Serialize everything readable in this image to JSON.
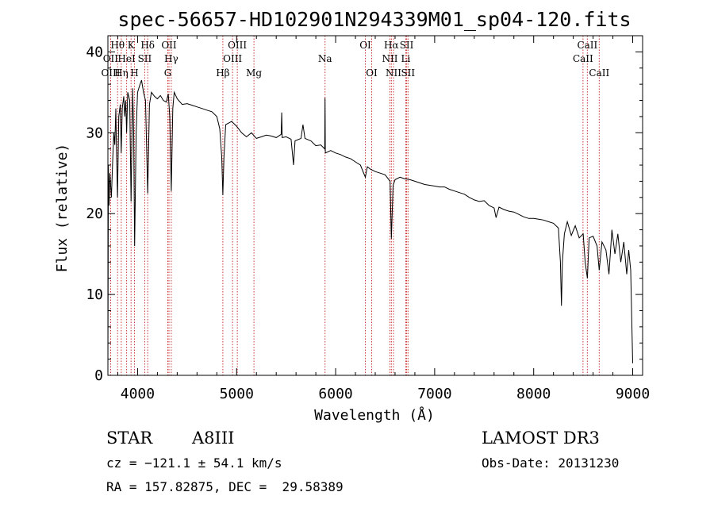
{
  "chart_data": {
    "type": "line",
    "title": "spec-56657-HD102901N294339M01_sp04-120.fits",
    "xlabel": "Wavelength (Å)",
    "ylabel": "Flux (relative)",
    "xlim": [
      3700,
      9100
    ],
    "ylim": [
      0,
      42
    ],
    "xticks": [
      4000,
      5000,
      6000,
      7000,
      8000,
      9000
    ],
    "yticks": [
      0,
      10,
      20,
      30,
      40
    ],
    "grid": false,
    "series": [
      {
        "name": "flux",
        "color": "#000000",
        "points": [
          [
            3700,
            0.5
          ],
          [
            3705,
            26
          ],
          [
            3712,
            21
          ],
          [
            3720,
            25
          ],
          [
            3735,
            22
          ],
          [
            3750,
            27
          ],
          [
            3760,
            30
          ],
          [
            3770,
            28.5
          ],
          [
            3780,
            33
          ],
          [
            3785,
            29
          ],
          [
            3797,
            22
          ],
          [
            3810,
            32
          ],
          [
            3825,
            33.5
          ],
          [
            3835,
            27.5
          ],
          [
            3845,
            33
          ],
          [
            3860,
            34.5
          ],
          [
            3870,
            32
          ],
          [
            3880,
            34
          ],
          [
            3889,
            30
          ],
          [
            3900,
            35
          ],
          [
            3920,
            34
          ],
          [
            3934,
            21.5
          ],
          [
            3950,
            35.5
          ],
          [
            3960,
            30
          ],
          [
            3970,
            16
          ],
          [
            3985,
            30
          ],
          [
            4000,
            35
          ],
          [
            4020,
            35.8
          ],
          [
            4040,
            36.5
          ],
          [
            4060,
            35
          ],
          [
            4080,
            34
          ],
          [
            4102,
            22.5
          ],
          [
            4120,
            33.5
          ],
          [
            4140,
            35
          ],
          [
            4170,
            34.5
          ],
          [
            4200,
            34.2
          ],
          [
            4230,
            34.6
          ],
          [
            4260,
            34
          ],
          [
            4290,
            33.8
          ],
          [
            4310,
            34.8
          ],
          [
            4325,
            32
          ],
          [
            4340,
            22.8
          ],
          [
            4355,
            33
          ],
          [
            4370,
            35
          ],
          [
            4400,
            34.2
          ],
          [
            4450,
            33.5
          ],
          [
            4500,
            33.6
          ],
          [
            4550,
            33.4
          ],
          [
            4600,
            33.2
          ],
          [
            4650,
            33
          ],
          [
            4700,
            32.8
          ],
          [
            4750,
            32.6
          ],
          [
            4800,
            32
          ],
          [
            4830,
            30.5
          ],
          [
            4850,
            27
          ],
          [
            4861,
            22.3
          ],
          [
            4872,
            27
          ],
          [
            4890,
            31
          ],
          [
            4920,
            31.2
          ],
          [
            4950,
            31.4
          ],
          [
            5000,
            30.8
          ],
          [
            5050,
            30
          ],
          [
            5100,
            29.5
          ],
          [
            5150,
            30
          ],
          [
            5200,
            29.3
          ],
          [
            5250,
            29.5
          ],
          [
            5300,
            29.7
          ],
          [
            5350,
            29.6
          ],
          [
            5400,
            29.4
          ],
          [
            5450,
            29.8
          ],
          [
            5455,
            32.5
          ],
          [
            5460,
            29.4
          ],
          [
            5500,
            29.5
          ],
          [
            5550,
            29.2
          ],
          [
            5575,
            26
          ],
          [
            5590,
            29
          ],
          [
            5650,
            29.3
          ],
          [
            5670,
            31
          ],
          [
            5690,
            29.3
          ],
          [
            5750,
            29
          ],
          [
            5800,
            28.4
          ],
          [
            5850,
            28.5
          ],
          [
            5890,
            28
          ],
          [
            5893,
            34.3
          ],
          [
            5896,
            27.5
          ],
          [
            5950,
            27.8
          ],
          [
            6000,
            27.5
          ],
          [
            6050,
            27.3
          ],
          [
            6100,
            27
          ],
          [
            6150,
            26.8
          ],
          [
            6200,
            26.4
          ],
          [
            6250,
            26
          ],
          [
            6300,
            24.5
          ],
          [
            6320,
            25.8
          ],
          [
            6350,
            25.5
          ],
          [
            6400,
            25.2
          ],
          [
            6450,
            25
          ],
          [
            6500,
            24.8
          ],
          [
            6550,
            24
          ],
          [
            6563,
            16.9
          ],
          [
            6580,
            23.5
          ],
          [
            6600,
            24.2
          ],
          [
            6650,
            24.5
          ],
          [
            6700,
            24.3
          ],
          [
            6750,
            24.2
          ],
          [
            6800,
            24
          ],
          [
            6850,
            23.8
          ],
          [
            6900,
            23.6
          ],
          [
            6950,
            23.5
          ],
          [
            7000,
            23.4
          ],
          [
            7050,
            23.3
          ],
          [
            7100,
            23.3
          ],
          [
            7150,
            23
          ],
          [
            7200,
            22.8
          ],
          [
            7250,
            22.6
          ],
          [
            7300,
            22.4
          ],
          [
            7350,
            22
          ],
          [
            7400,
            21.7
          ],
          [
            7450,
            21.5
          ],
          [
            7500,
            21.6
          ],
          [
            7550,
            21
          ],
          [
            7600,
            20.7
          ],
          [
            7620,
            19.5
          ],
          [
            7650,
            20.8
          ],
          [
            7700,
            20.5
          ],
          [
            7750,
            20.3
          ],
          [
            7800,
            20.2
          ],
          [
            7850,
            19.9
          ],
          [
            7900,
            19.6
          ],
          [
            7950,
            19.4
          ],
          [
            8000,
            19.4
          ],
          [
            8050,
            19.3
          ],
          [
            8100,
            19.2
          ],
          [
            8150,
            19
          ],
          [
            8200,
            18.8
          ],
          [
            8250,
            18.2
          ],
          [
            8270,
            14
          ],
          [
            8280,
            8.6
          ],
          [
            8290,
            14
          ],
          [
            8310,
            17.5
          ],
          [
            8340,
            19
          ],
          [
            8380,
            17.3
          ],
          [
            8420,
            18.5
          ],
          [
            8460,
            17
          ],
          [
            8500,
            17.5
          ],
          [
            8520,
            14
          ],
          [
            8542,
            12
          ],
          [
            8560,
            17
          ],
          [
            8600,
            17.2
          ],
          [
            8640,
            16
          ],
          [
            8662,
            13
          ],
          [
            8690,
            16.5
          ],
          [
            8730,
            15.5
          ],
          [
            8760,
            12.5
          ],
          [
            8790,
            18
          ],
          [
            8820,
            15
          ],
          [
            8850,
            17.5
          ],
          [
            8880,
            14
          ],
          [
            8910,
            16.5
          ],
          [
            8940,
            12.5
          ],
          [
            8960,
            15.5
          ],
          [
            8980,
            13
          ],
          [
            9000,
            1.5
          ]
        ]
      }
    ],
    "lines": [
      {
        "label": "Hθ",
        "wl": 3798,
        "row": 1
      },
      {
        "label": "K",
        "wl": 3934,
        "row": 1
      },
      {
        "label": "Hδ",
        "wl": 4102,
        "row": 1
      },
      {
        "label": "OII",
        "wl": 4317,
        "row": 1
      },
      {
        "label": "OIII",
        "wl": 5007,
        "row": 1
      },
      {
        "label": "OI",
        "wl": 6300,
        "row": 1
      },
      {
        "label": "Hα",
        "wl": 6563,
        "row": 1
      },
      {
        "label": "SII",
        "wl": 6717,
        "row": 1
      },
      {
        "label": "CaII",
        "wl": 8542,
        "row": 1
      },
      {
        "label": "OII",
        "wl": 3727,
        "row": 2
      },
      {
        "label": "HeI",
        "wl": 3889,
        "row": 2
      },
      {
        "label": "SII",
        "wl": 4072,
        "row": 2
      },
      {
        "label": "Hγ",
        "wl": 4340,
        "row": 2
      },
      {
        "label": "OIII",
        "wl": 4959,
        "row": 2
      },
      {
        "label": "Na",
        "wl": 5893,
        "row": 2
      },
      {
        "label": "NII",
        "wl": 6548,
        "row": 2
      },
      {
        "label": "Li",
        "wl": 6708,
        "row": 2
      },
      {
        "label": "CaII",
        "wl": 8498,
        "row": 2
      },
      {
        "label": "OIII",
        "wl": 3728,
        "row": 3
      },
      {
        "label": "Hη",
        "wl": 3835,
        "row": 3
      },
      {
        "label": "H",
        "wl": 3968,
        "row": 3
      },
      {
        "label": "G",
        "wl": 4305,
        "row": 3
      },
      {
        "label": "Hβ",
        "wl": 4861,
        "row": 3
      },
      {
        "label": "Mg",
        "wl": 5175,
        "row": 3
      },
      {
        "label": "OI",
        "wl": 6364,
        "row": 3
      },
      {
        "label": "NII",
        "wl": 6584,
        "row": 3
      },
      {
        "label": "SII",
        "wl": 6731,
        "row": 3
      },
      {
        "label": "CaII",
        "wl": 8662,
        "row": 3
      }
    ],
    "line_color": "#cc3333"
  },
  "info": {
    "object_type": "STAR",
    "spectral_class": "A8III",
    "survey": "LAMOST DR3",
    "cz": "cz = −121.1 ± 54.1 km/s",
    "obs_date": "Obs-Date: 20131230",
    "radec": "RA = 157.82875, DEC =  29.58389"
  }
}
